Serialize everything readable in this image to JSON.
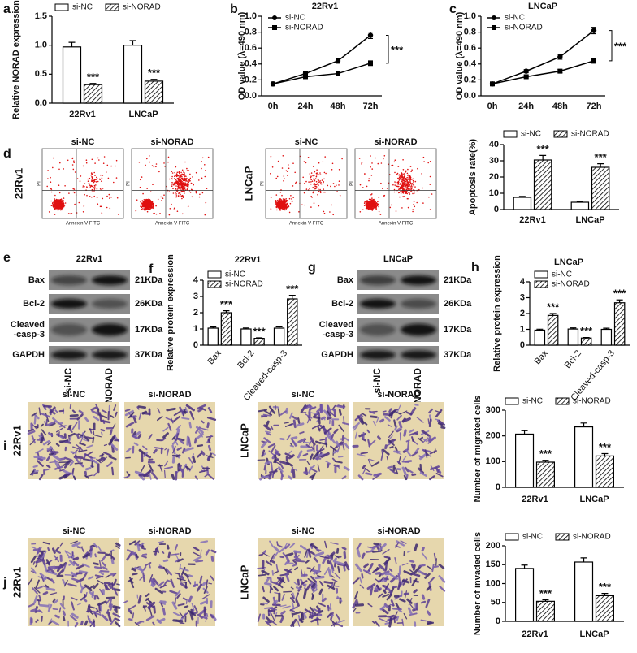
{
  "panel_letters": [
    "a",
    "b",
    "c",
    "d",
    "e",
    "f",
    "g",
    "h",
    "i",
    "j"
  ],
  "chart_data": [
    {
      "type": "bar",
      "y_label": "Relative NORAD expression",
      "categories": [
        "22Rv1",
        "LNCaP"
      ],
      "series": [
        {
          "name": "si-NC",
          "color": "#ffffff",
          "values": [
            0.97,
            1.0
          ],
          "errors": [
            0.08,
            0.08
          ]
        },
        {
          "name": "si-NORAD",
          "color": "#000000",
          "hatch": true,
          "values": [
            0.32,
            0.38
          ],
          "errors": [
            0.02,
            0.03
          ]
        }
      ],
      "annotations": [
        "***",
        "***"
      ],
      "ylim": [
        0,
        1.5
      ],
      "yticks": [
        {
          "value": 0,
          "label": "0.0"
        },
        {
          "value": 0.5,
          "label": "0.5"
        },
        {
          "value": 1,
          "label": "1.0"
        },
        {
          "value": 1.5,
          "label": "1.5"
        }
      ]
    },
    {
      "type": "line",
      "title": "22Rv1",
      "y_label": "OD value (λ=490 nm)",
      "categories": [
        "0h",
        "24h",
        "48h",
        "72h"
      ],
      "series": [
        {
          "name": "si-NC",
          "color": "#000000",
          "marker": "circle",
          "values": [
            0.15,
            0.28,
            0.44,
            0.76
          ],
          "errors": [
            0.01,
            0.02,
            0.03,
            0.04
          ]
        },
        {
          "name": "si-NORAD",
          "color": "#000000",
          "marker": "square",
          "values": [
            0.15,
            0.24,
            0.28,
            0.41
          ],
          "errors": [
            0.01,
            0.015,
            0.02,
            0.03
          ]
        }
      ],
      "annotations": [
        "***"
      ],
      "ylim": [
        0,
        1.0
      ],
      "yticks": [
        {
          "value": 0,
          "label": "0.0"
        },
        {
          "value": 0.2,
          "label": "0.2"
        },
        {
          "value": 0.4,
          "label": "0.4"
        },
        {
          "value": 0.6,
          "label": "0.6"
        },
        {
          "value": 0.8,
          "label": "0.8"
        },
        {
          "value": 1,
          "label": "1.0"
        }
      ]
    },
    {
      "type": "line",
      "title": "LNCaP",
      "y_label": "OD value (λ=490 nm)",
      "categories": [
        "0h",
        "24h",
        "48h",
        "72h"
      ],
      "series": [
        {
          "name": "si-NC",
          "color": "#000000",
          "marker": "circle",
          "values": [
            0.15,
            0.31,
            0.49,
            0.82
          ],
          "errors": [
            0.01,
            0.02,
            0.03,
            0.04
          ]
        },
        {
          "name": "si-NORAD",
          "color": "#000000",
          "marker": "square",
          "values": [
            0.15,
            0.24,
            0.31,
            0.44
          ],
          "errors": [
            0.01,
            0.015,
            0.02,
            0.03
          ]
        }
      ],
      "annotations": [
        "***"
      ],
      "ylim": [
        0,
        1.0
      ],
      "yticks": [
        {
          "value": 0,
          "label": "0.0"
        },
        {
          "value": 0.2,
          "label": "0.2"
        },
        {
          "value": 0.4,
          "label": "0.4"
        },
        {
          "value": 0.6,
          "label": "0.6"
        },
        {
          "value": 0.8,
          "label": "0.8"
        },
        {
          "value": 1,
          "label": "1.0"
        }
      ]
    },
    {
      "type": "bar",
      "y_label": "Apoptosis rate(%)",
      "categories": [
        "22Rv1",
        "LNCaP"
      ],
      "series": [
        {
          "name": "si-NC",
          "color": "#ffffff",
          "values": [
            7.5,
            4.5
          ],
          "errors": [
            0.6,
            0.4
          ]
        },
        {
          "name": "si-NORAD",
          "color": "#000000",
          "hatch": true,
          "values": [
            30.5,
            26
          ],
          "errors": [
            2.8,
            2.2
          ]
        }
      ],
      "annotations": [
        "***",
        "***"
      ],
      "ylim": [
        0,
        40
      ],
      "yticks": [
        0,
        10,
        20,
        30,
        40
      ]
    },
    {
      "type": "bar",
      "title": "22Rv1",
      "y_label": "Relative protein expression",
      "categories": [
        "Bax",
        "Bcl-2",
        "Cleaved-casp-3"
      ],
      "series": [
        {
          "name": "si-NC",
          "color": "#ffffff",
          "values": [
            1.05,
            1.0,
            1.05
          ],
          "errors": [
            0.07,
            0.06,
            0.08
          ]
        },
        {
          "name": "si-NORAD",
          "color": "#000000",
          "hatch": true,
          "values": [
            2.0,
            0.42,
            2.85
          ],
          "errors": [
            0.12,
            0.03,
            0.22
          ]
        }
      ],
      "annotations": [
        "***",
        "***",
        "***"
      ],
      "ylim": [
        0,
        4
      ],
      "yticks": [
        0,
        1,
        2,
        3,
        4
      ]
    },
    {
      "type": "bar",
      "title": "LNCaP",
      "y_label": "Relative protein expression",
      "categories": [
        "Bax",
        "Bcl-2",
        "Cleaved-casp-3"
      ],
      "series": [
        {
          "name": "si-NC",
          "color": "#ffffff",
          "values": [
            0.95,
            1.02,
            1.0
          ],
          "errors": [
            0.06,
            0.07,
            0.07
          ]
        },
        {
          "name": "si-NORAD",
          "color": "#000000",
          "hatch": true,
          "values": [
            1.88,
            0.45,
            2.68
          ],
          "errors": [
            0.12,
            0.03,
            0.18
          ]
        }
      ],
      "annotations": [
        "***",
        "***",
        "***"
      ],
      "ylim": [
        0,
        4
      ],
      "yticks": [
        0,
        1,
        2,
        3,
        4
      ]
    },
    {
      "type": "bar",
      "y_label": "Number of migrated cells",
      "categories": [
        "22Rv1",
        "LNCaP"
      ],
      "series": [
        {
          "name": "si-NC",
          "color": "#ffffff",
          "values": [
            207,
            235
          ],
          "errors": [
            13,
            15
          ]
        },
        {
          "name": "si-NORAD",
          "color": "#000000",
          "hatch": true,
          "values": [
            98,
            122
          ],
          "errors": [
            7,
            9
          ]
        }
      ],
      "annotations": [
        "***",
        "***"
      ],
      "ylim": [
        0,
        300
      ],
      "yticks": [
        0,
        100,
        200,
        300
      ]
    },
    {
      "type": "bar",
      "y_label": "Number of invaded cells",
      "categories": [
        "22Rv1",
        "LNCaP"
      ],
      "series": [
        {
          "name": "si-NC",
          "color": "#ffffff",
          "values": [
            140,
            157
          ],
          "errors": [
            9,
            11
          ]
        },
        {
          "name": "si-NORAD",
          "color": "#000000",
          "hatch": true,
          "values": [
            53,
            68
          ],
          "errors": [
            4,
            6
          ]
        }
      ],
      "annotations": [
        "***",
        "***"
      ],
      "ylim": [
        0,
        200
      ],
      "yticks": [
        0,
        50,
        100,
        150,
        200
      ]
    }
  ],
  "flow": {
    "rows": [
      "22Rv1",
      "LNCaP"
    ],
    "columns": [
      "si-NC",
      "si-NORAD"
    ],
    "x_label": "Annexin V-FITC",
    "y_label": "PI"
  },
  "blots": [
    {
      "title": "22Rv1",
      "proteins": [
        [
          "Bax"
        ],
        [
          "Bcl-2"
        ],
        [
          "Cleaved",
          "-casp-3"
        ],
        [
          "GAPDH"
        ]
      ],
      "sizes": [
        "21KDa",
        "26KDa",
        "17KDa",
        "37KDa"
      ],
      "lanes": [
        "si-NC",
        "si-NORAD"
      ]
    },
    {
      "title": "LNCaP",
      "proteins": [
        [
          "Bax"
        ],
        [
          "Bcl-2"
        ],
        [
          "Cleaved",
          "-casp-3"
        ],
        [
          "GAPDH"
        ]
      ],
      "sizes": [
        "21KDa",
        "26KDa",
        "17KDa",
        "37KDa"
      ],
      "lanes": [
        "si-NC",
        "si-NORAD"
      ]
    }
  ],
  "transwell": {
    "rows": [
      "22Rv1",
      "LNCaP"
    ],
    "columns": [
      "si-NC",
      "si-NORAD"
    ]
  }
}
